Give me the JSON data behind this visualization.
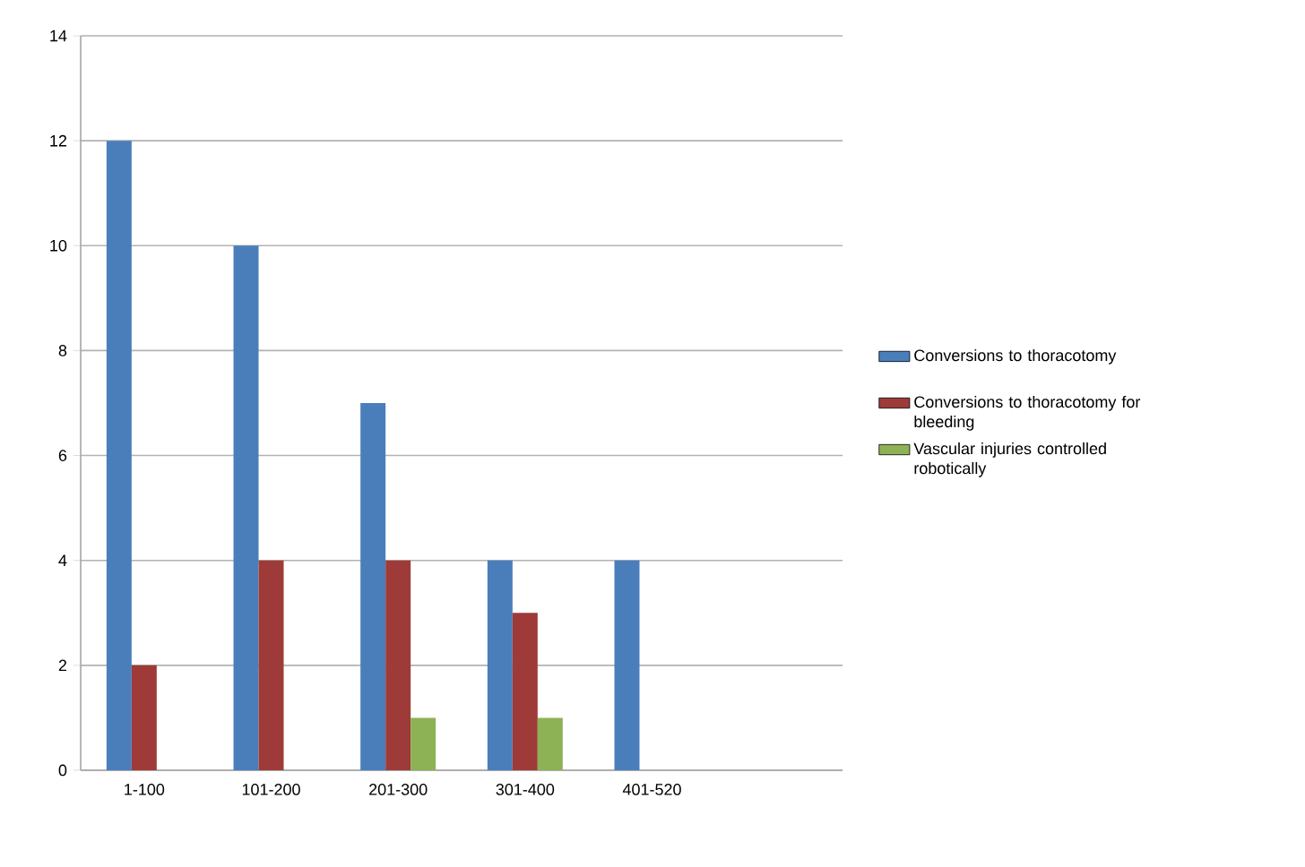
{
  "chart_data": {
    "type": "bar",
    "categories": [
      "1-100",
      "101-200",
      "201-300",
      "301-400",
      "401-520",
      null
    ],
    "series": [
      {
        "name": "Conversions to thoracotomy",
        "color": "#4a7ebb",
        "values": [
          12,
          10,
          7,
          4,
          4,
          null
        ]
      },
      {
        "name": "Conversions to thoracotomy for bleeding",
        "color": "#9e3b38",
        "values": [
          2,
          4,
          4,
          3,
          null,
          null
        ]
      },
      {
        "name": "Vascular injuries controlled robotically",
        "color": "#8db255",
        "values": [
          null,
          null,
          1,
          1,
          null,
          null
        ]
      }
    ],
    "ylim": [
      0,
      14
    ],
    "yticks": [
      0,
      2,
      4,
      6,
      8,
      10,
      12,
      14
    ],
    "grid": "y",
    "legend": "right"
  }
}
